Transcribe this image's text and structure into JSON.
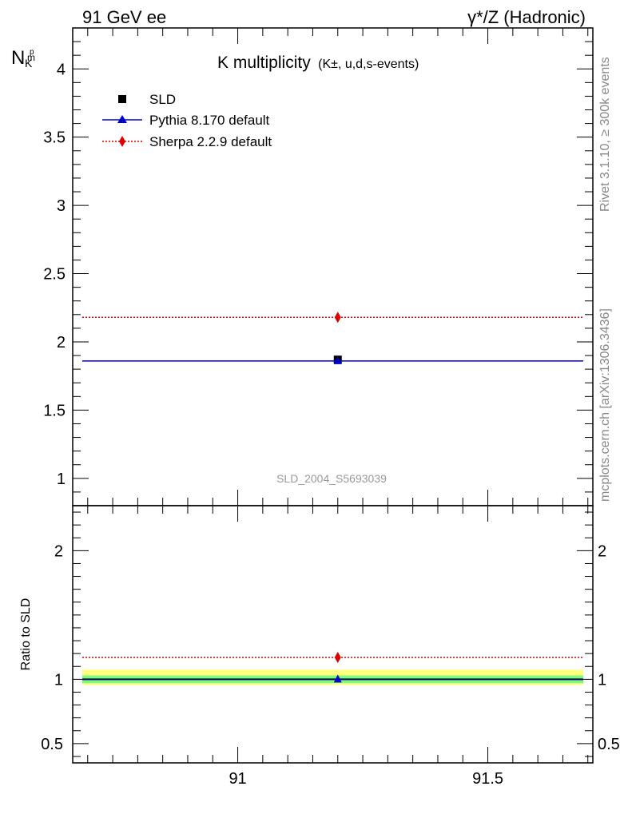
{
  "header": {
    "left": "91 GeV ee",
    "right": "γ*/Z (Hadronic)"
  },
  "side_labels": {
    "rivet": "Rivet 3.1.10, ≥ 300k events",
    "mcplots": "mcplots.cern.ch [arXiv:1306.3436]"
  },
  "analysis_id": "SLD_2004_S5693039",
  "colors": {
    "data": "#000000",
    "pythia": "#0000cc",
    "sherpa": "#dd0000",
    "band_inner": "#7cfc7c",
    "band_outer": "#ffff80"
  },
  "chart_data": [
    {
      "type": "scatter",
      "panel": "main",
      "title": "K multiplicity",
      "title_sub": "(K±, u,d,s-events)",
      "ylabel_main": "N",
      "ylabel_sub": "K",
      "ylabel_sup": "p",
      "ylabel_sub2": "m",
      "xlim": [
        90.67,
        91.71
      ],
      "ylim": [
        0.8,
        4.3
      ],
      "y_ticks": [
        1,
        1.5,
        2,
        2.5,
        3,
        3.5,
        4
      ],
      "y_tick_labels": [
        "1",
        "1.5",
        "2",
        "2.5",
        "3",
        "3.5",
        "4"
      ],
      "legend_position": "top-left",
      "series": [
        {
          "name": "SLD",
          "marker": "square",
          "x": [
            91.2
          ],
          "y": [
            1.87
          ],
          "yerr": [
            0.02
          ]
        },
        {
          "name": "Pythia 8.170 default",
          "marker": "triangle",
          "line": "solid",
          "x": [
            91.2
          ],
          "y": [
            1.86
          ],
          "xrange": [
            90.67,
            91.71
          ]
        },
        {
          "name": "Sherpa 2.2.9 default",
          "marker": "diamond",
          "line": "dotted",
          "x": [
            91.2
          ],
          "y": [
            2.18
          ],
          "xrange": [
            90.67,
            91.71
          ]
        }
      ]
    },
    {
      "type": "scatter",
      "panel": "ratio",
      "ylabel": "Ratio to SLD",
      "xlim": [
        90.67,
        91.71
      ],
      "ylim": [
        0.35,
        2.35
      ],
      "x_ticks": [
        91,
        91.5
      ],
      "x_tick_labels": [
        "91",
        "91.5"
      ],
      "y_ticks": [
        0.5,
        1,
        2
      ],
      "y_tick_labels": [
        "0.5",
        "1",
        "2"
      ],
      "band": {
        "inner": [
          0.97,
          1.03
        ],
        "outer": [
          0.955,
          1.075
        ]
      },
      "series": [
        {
          "name": "SLD",
          "y": [
            1.0
          ]
        },
        {
          "name": "Pythia 8.170 default",
          "marker": "triangle",
          "x": [
            91.2
          ],
          "y": [
            1.0
          ]
        },
        {
          "name": "Sherpa 2.2.9 default",
          "marker": "diamond",
          "x": [
            91.2
          ],
          "y": [
            1.17
          ]
        }
      ]
    }
  ]
}
